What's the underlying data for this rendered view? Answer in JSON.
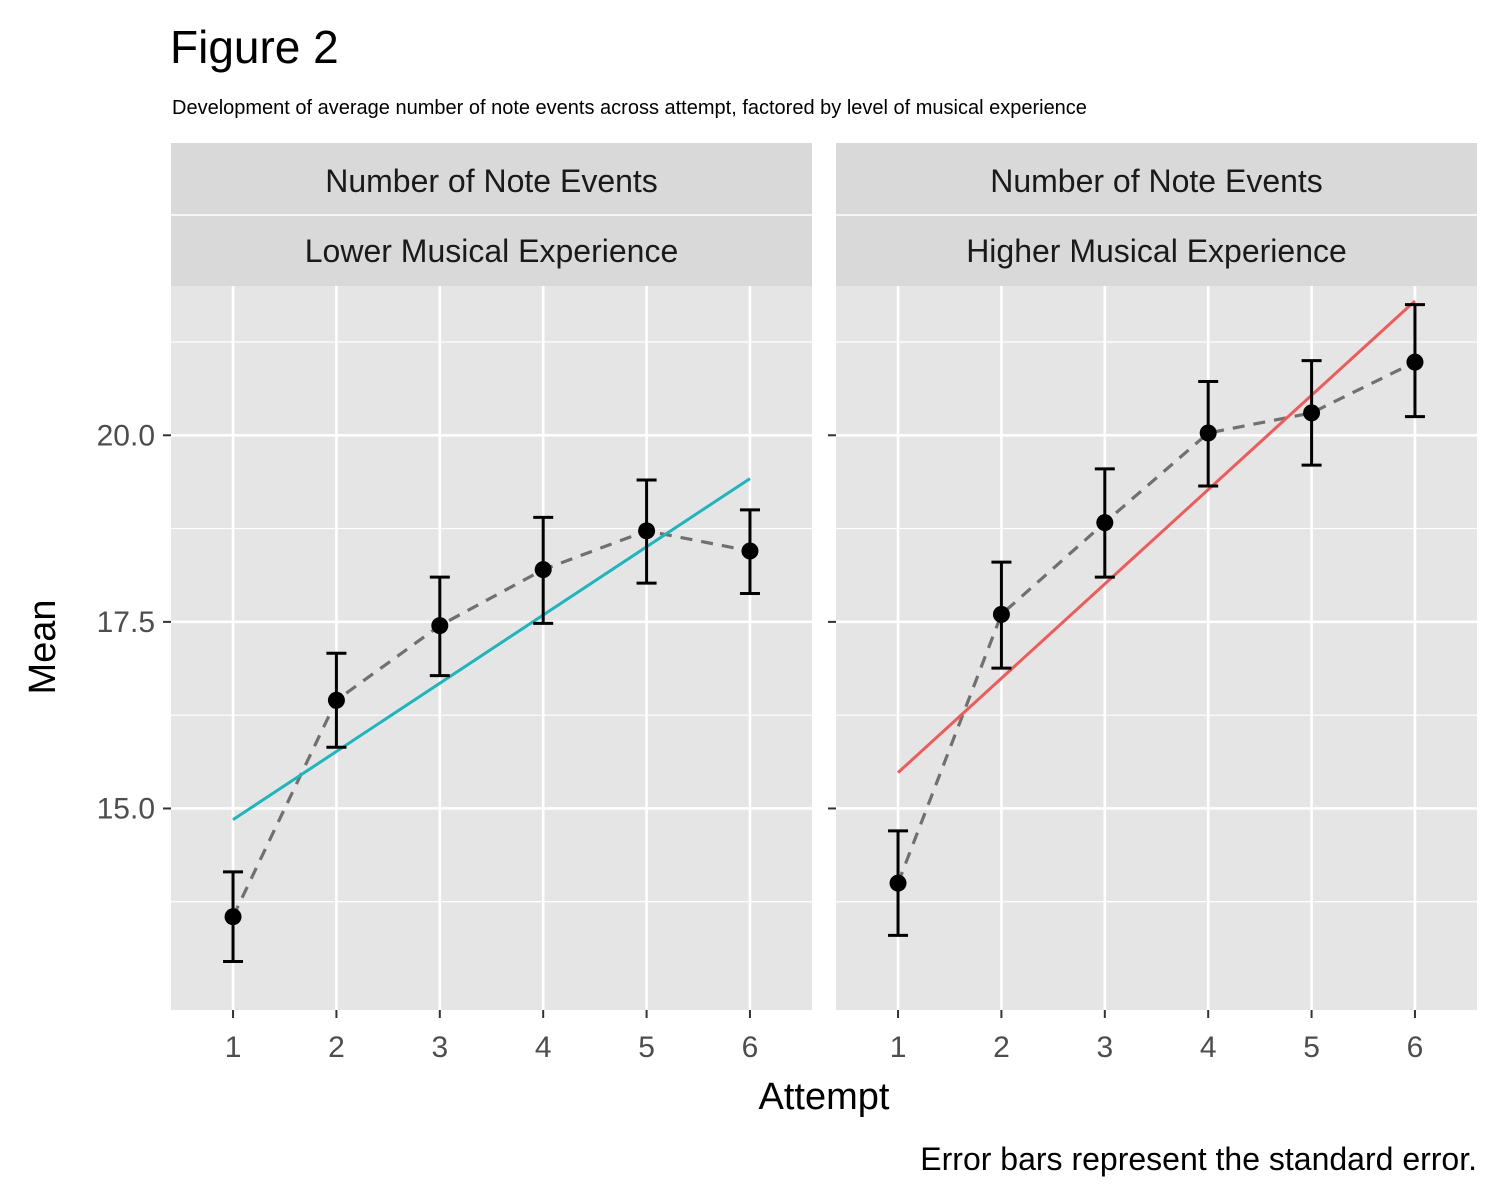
{
  "figure": {
    "title": "Figure 2",
    "subtitle": "Development of average number of note events across attempt, factored by level of musical experience",
    "caption": "Error bars represent the standard error."
  },
  "chart_data": {
    "type": "line",
    "xlabel": "Attempt",
    "ylabel": "Mean",
    "x": [
      1,
      2,
      3,
      4,
      5,
      6
    ],
    "xlim": [
      0.4,
      6.6
    ],
    "ylim": [
      12.3,
      22.0
    ],
    "yticks": [
      15.0,
      17.5,
      20.0
    ],
    "ytick_labels": [
      "15.0",
      "17.5",
      "20.0"
    ],
    "minor_yticks": [
      13.75,
      16.25,
      18.75,
      21.25
    ],
    "grid": true,
    "colors": {
      "panel_bg": "#e5e5e5",
      "strip_bg": "#d9d9d9",
      "grid": "#ffffff",
      "points": "#000000",
      "mean_line": "#707070",
      "lower_fit": "#1fb5bd",
      "higher_fit": "#ee5b5b"
    },
    "panels": [
      {
        "strip": [
          "Number of Note Events",
          "Lower Musical Experience"
        ],
        "mean": [
          13.55,
          16.45,
          17.45,
          18.2,
          18.72,
          18.45
        ],
        "se_low": [
          12.95,
          15.82,
          16.78,
          17.48,
          18.02,
          17.88
        ],
        "se_high": [
          14.15,
          17.08,
          18.1,
          18.9,
          19.4,
          19.0
        ],
        "fit": {
          "x": [
            1,
            6
          ],
          "y": [
            14.85,
            19.42
          ]
        },
        "fit_color": "#1fb5bd"
      },
      {
        "strip": [
          "Number of Note Events",
          "Higher Musical Experience"
        ],
        "mean": [
          14.0,
          17.6,
          18.83,
          20.03,
          20.3,
          20.98
        ],
        "se_low": [
          13.3,
          16.88,
          18.1,
          19.32,
          19.6,
          20.25
        ],
        "se_high": [
          14.7,
          18.3,
          19.55,
          20.72,
          21.0,
          21.75
        ],
        "fit": {
          "x": [
            1,
            6
          ],
          "y": [
            15.48,
            21.8
          ]
        },
        "fit_color": "#ee5b5b"
      }
    ]
  }
}
